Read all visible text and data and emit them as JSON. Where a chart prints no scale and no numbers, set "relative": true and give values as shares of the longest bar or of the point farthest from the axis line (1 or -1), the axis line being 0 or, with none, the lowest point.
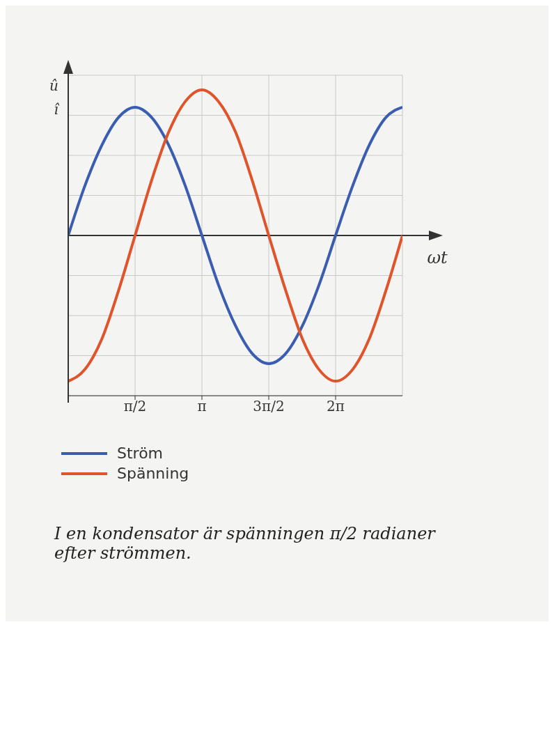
{
  "chart_data": {
    "type": "line",
    "relative": true,
    "xlabel": "ωt",
    "x": [
      0,
      0.39,
      0.79,
      1.18,
      1.57,
      1.96,
      2.36,
      2.75,
      3.14,
      3.53,
      3.93,
      4.32,
      4.71,
      5.11,
      5.5,
      5.89,
      6.28,
      6.68,
      7.07,
      7.46,
      7.85
    ],
    "xlim": [
      0,
      7.85
    ],
    "xticks": [
      {
        "value": 1.57,
        "label": "π/2"
      },
      {
        "value": 3.14,
        "label": "π"
      },
      {
        "value": 4.71,
        "label": "3π/2"
      },
      {
        "value": 6.28,
        "label": "2π"
      }
    ],
    "series": [
      {
        "name": "Ström",
        "color": "#3a5db0",
        "values": [
          0,
          0.34,
          0.62,
          0.81,
          0.88,
          0.81,
          0.62,
          0.34,
          0,
          -0.34,
          -0.62,
          -0.81,
          -0.88,
          -0.81,
          -0.62,
          -0.34,
          0,
          0.34,
          0.62,
          0.81,
          0.88
        ]
      },
      {
        "name": "Spänning",
        "color": "#e0542c",
        "values": [
          -1,
          -0.92,
          -0.71,
          -0.38,
          0,
          0.38,
          0.71,
          0.92,
          1,
          0.92,
          0.71,
          0.38,
          0,
          -0.38,
          -0.71,
          -0.92,
          -1,
          -0.92,
          -0.71,
          -0.38,
          0
        ]
      }
    ],
    "annotations": [
      "û",
      "î",
      "I en kondensator är spänningen π/2 radianer efter strömmen."
    ],
    "grid": true,
    "legend": "bottom left",
    "marker": "none",
    "line_style": "solid"
  }
}
